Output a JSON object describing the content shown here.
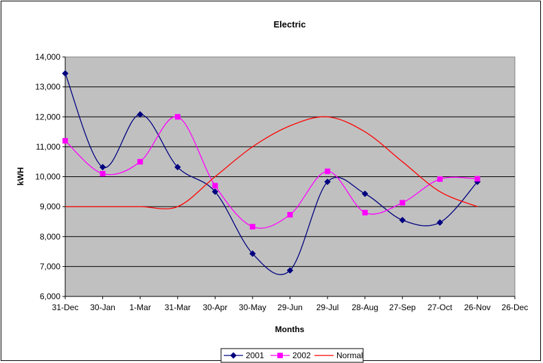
{
  "chart_data": {
    "type": "line",
    "title": "Electric",
    "xlabel": "Months",
    "ylabel": "kWH",
    "x_tick_labels": [
      "31-Dec",
      "30-Jan",
      "1-Mar",
      "31-Mar",
      "30-Apr",
      "30-May",
      "29-Jun",
      "29-Jul",
      "28-Aug",
      "27-Sep",
      "27-Oct",
      "26-Nov",
      "26-Dec"
    ],
    "y_tick_labels": [
      "6,000",
      "7,000",
      "8,000",
      "9,000",
      "10,000",
      "11,000",
      "12,000",
      "13,000",
      "14,000"
    ],
    "ylim": [
      6000,
      14000
    ],
    "y_step": 1000,
    "grid": true,
    "legend_position": "bottom",
    "plot_background": "#c0c0c0",
    "series": [
      {
        "name": "2001",
        "color": "#000080",
        "marker": "diamond",
        "points": [
          [
            "31-Dec",
            13450
          ],
          [
            "30-Jan",
            10320
          ],
          [
            "1-Mar",
            12080
          ],
          [
            "31-Mar",
            10320
          ],
          [
            "30-Apr",
            9500
          ],
          [
            "30-May",
            7430
          ],
          [
            "29-Jun",
            6870
          ],
          [
            "29-Jul",
            9830
          ],
          [
            "28-Aug",
            9430
          ],
          [
            "27-Sep",
            8550
          ],
          [
            "27-Oct",
            8470
          ],
          [
            "26-Nov",
            9830
          ]
        ]
      },
      {
        "name": "2002",
        "color": "#ff00ff",
        "marker": "square",
        "points": [
          [
            "31-Dec",
            11200
          ],
          [
            "30-Jan",
            10100
          ],
          [
            "1-Mar",
            10500
          ],
          [
            "31-Mar",
            12000
          ],
          [
            "30-Apr",
            9700
          ],
          [
            "30-May",
            8330
          ],
          [
            "29-Jun",
            8730
          ],
          [
            "29-Jul",
            10180
          ],
          [
            "28-Aug",
            8800
          ],
          [
            "27-Sep",
            9130
          ],
          [
            "27-Oct",
            9920
          ],
          [
            "26-Nov",
            9930
          ]
        ]
      },
      {
        "name": "Normal",
        "color": "#ff0000",
        "marker": "none",
        "points": [
          [
            "31-Dec",
            9000
          ],
          [
            "30-Jan",
            9000
          ],
          [
            "1-Mar",
            9000
          ],
          [
            "31-Mar",
            9000
          ],
          [
            "30-Apr",
            10000
          ],
          [
            "30-May",
            11000
          ],
          [
            "29-Jun",
            11700
          ],
          [
            "29-Jul",
            12000
          ],
          [
            "28-Aug",
            11500
          ],
          [
            "27-Sep",
            10500
          ],
          [
            "27-Oct",
            9500
          ],
          [
            "26-Nov",
            9000
          ]
        ]
      }
    ]
  }
}
